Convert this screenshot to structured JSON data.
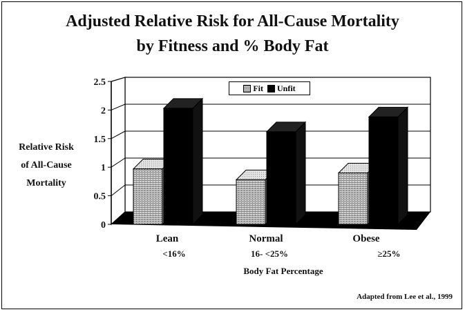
{
  "chart_data": {
    "type": "bar",
    "style": "3d-clustered",
    "title_lines": [
      "Adjusted Relative Risk for All-Cause Mortality",
      "by Fitness and % Body Fat"
    ],
    "ylabel_lines": [
      "Relative Risk",
      "of All-Cause",
      "Mortality"
    ],
    "xlabel": "Body Fat Percentage",
    "categories": [
      {
        "name": "Lean",
        "sub": "<16%"
      },
      {
        "name": "Normal",
        "sub": "16- <25%"
      },
      {
        "name": "Obese",
        "sub": "≥25%"
      }
    ],
    "series": [
      {
        "name": "Fit",
        "values": [
          0.97,
          0.78,
          0.9
        ],
        "color": "#b8b8b8"
      },
      {
        "name": "Unfit",
        "values": [
          2.03,
          1.62,
          1.88
        ],
        "color": "#000000"
      }
    ],
    "ylim": [
      0,
      2.5
    ],
    "yticks": [
      "0",
      "0.5",
      "1",
      "1.5",
      "2",
      "2.5"
    ],
    "grid": true,
    "legend_position": "top-center",
    "source": "Adapted from Lee et al., 1999"
  }
}
